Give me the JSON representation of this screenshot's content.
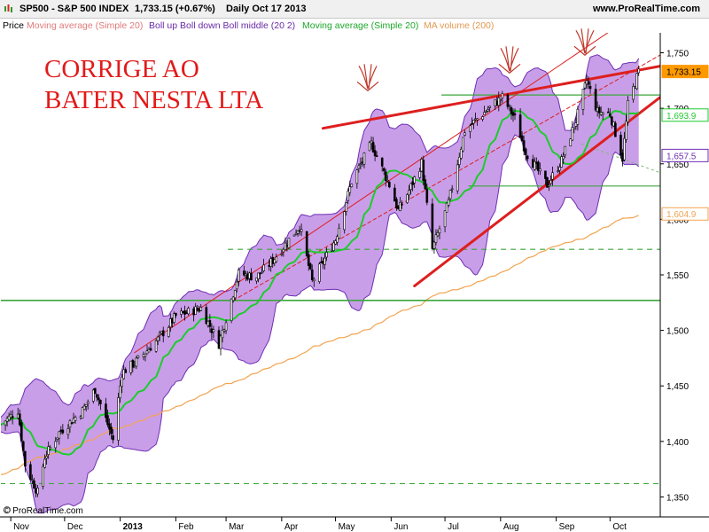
{
  "header": {
    "title": "SP500 - S&P 500 INDEX",
    "price_change": "1,733.15 (+0.67%)",
    "period_date": "Daily  Oct 17 2013",
    "website": "www.ProRealTime.com"
  },
  "legend": {
    "price": "Price",
    "ma20": "Moving average (Simple 20)",
    "boll": "Boll up Boll down Boll middle (20 2)",
    "ma20b": "Moving average (Simple 20)",
    "ma_volume": "MA volume (200)"
  },
  "annotation": {
    "line1": "CORRIGE AO",
    "line2": "BATER NESTA  LTA"
  },
  "copyright": "© ProRealTime.com",
  "colors": {
    "candle": "#000000",
    "bollinger_fill": "#c99ee8",
    "bollinger_edge": "#6e2fb4",
    "ma20": "#1ccc2c",
    "ma200": "#f2a350",
    "trend_red": "#dd1f1f",
    "support_green": "#3aa63a",
    "price_tag": "#ff9900"
  },
  "chart_data": {
    "type": "candlestick",
    "series_name": "SP500",
    "x_axis_labels": [
      "Nov",
      "Dec",
      "2013",
      "Feb",
      "Mar",
      "Apr",
      "May",
      "Jun",
      "Jul",
      "Aug",
      "Sep",
      "Oct"
    ],
    "x_ticks": [
      "2012-11-01",
      "2012-12-01",
      "2013-01-01",
      "2013-02-01",
      "2013-03-01",
      "2013-04-01",
      "2013-05-01",
      "2013-06-01",
      "2013-07-01",
      "2013-08-01",
      "2013-09-01",
      "2013-10-01"
    ],
    "xlim": [
      "2012-10-26",
      "2013-10-29"
    ],
    "ylim": [
      1332,
      1768
    ],
    "y_ticks": [
      1350,
      1400,
      1450,
      1500,
      1550,
      1600,
      1650,
      1700,
      1750
    ],
    "y_tick_labels": [
      "1,350",
      "1,400",
      "1,450",
      "1,500",
      "1,550",
      "1,600",
      "1,650",
      "1,700",
      "1,750"
    ],
    "price_path": [
      [
        "2012-10-26",
        1415
      ],
      [
        "2012-11-05",
        1428
      ],
      [
        "2012-11-09",
        1379
      ],
      [
        "2012-11-16",
        1354
      ],
      [
        "2012-11-20",
        1386
      ],
      [
        "2012-11-28",
        1408
      ],
      [
        "2012-12-11",
        1428
      ],
      [
        "2012-12-18",
        1447
      ],
      [
        "2012-12-28",
        1402
      ],
      [
        "2013-01-02",
        1462
      ],
      [
        "2013-01-10",
        1472
      ],
      [
        "2013-01-22",
        1492
      ],
      [
        "2013-02-01",
        1513
      ],
      [
        "2013-02-15",
        1520
      ],
      [
        "2013-02-25",
        1488
      ],
      [
        "2013-03-08",
        1551
      ],
      [
        "2013-03-18",
        1548
      ],
      [
        "2013-03-27",
        1563
      ],
      [
        "2013-04-11",
        1594
      ],
      [
        "2013-04-18",
        1544
      ],
      [
        "2013-05-01",
        1582
      ],
      [
        "2013-05-10",
        1634
      ],
      [
        "2013-05-21",
        1668
      ],
      [
        "2013-05-31",
        1631
      ],
      [
        "2013-06-05",
        1608
      ],
      [
        "2013-06-11",
        1626
      ],
      [
        "2013-06-18",
        1651
      ],
      [
        "2013-06-24",
        1573
      ],
      [
        "2013-07-03",
        1615
      ],
      [
        "2013-07-12",
        1680
      ],
      [
        "2013-07-22",
        1695
      ],
      [
        "2013-08-02",
        1710
      ],
      [
        "2013-08-09",
        1691
      ],
      [
        "2013-08-15",
        1661
      ],
      [
        "2013-08-27",
        1631
      ],
      [
        "2013-09-04",
        1653
      ],
      [
        "2013-09-12",
        1689
      ],
      [
        "2013-09-18",
        1725
      ],
      [
        "2013-09-24",
        1697
      ],
      [
        "2013-10-01",
        1695
      ],
      [
        "2013-10-08",
        1655
      ],
      [
        "2013-10-11",
        1703
      ],
      [
        "2013-10-17",
        1733
      ]
    ],
    "price_labels": [
      {
        "value": 1733.15,
        "text": "1,733.15",
        "series": "price"
      },
      {
        "value": 1693.9,
        "text": "1,693.9",
        "series": "ma20"
      },
      {
        "value": 1657.5,
        "text": "1,657.5",
        "series": "bollinger"
      },
      {
        "value": 1604.9,
        "text": "1,604.9",
        "series": "ma200"
      }
    ],
    "horizontal_lines": [
      {
        "value": 1712,
        "style": "solid",
        "from": "2013-06-29",
        "to": "2013-10-29"
      },
      {
        "value": 1630,
        "style": "solid",
        "from": "2013-07-14",
        "to": "2013-10-29"
      },
      {
        "value": 1573,
        "style": "dashed",
        "from": "2013-03-02",
        "to": "2013-10-29"
      },
      {
        "value": 1527,
        "style": "solid",
        "from": "2012-10-26",
        "to": "2013-10-29"
      },
      {
        "value": 1362,
        "style": "dashed",
        "from": "2012-10-26",
        "to": "2013-10-29"
      }
    ],
    "trendlines": [
      {
        "points": [
          [
            "2013-04-24",
            1682
          ],
          [
            "2013-10-29",
            1738
          ]
        ],
        "width": 3
      },
      {
        "points": [
          [
            "2013-06-14",
            1540
          ],
          [
            "2013-10-29",
            1710
          ]
        ],
        "width": 3
      },
      {
        "points": [
          [
            "2013-03-05",
            1527
          ],
          [
            "2013-10-29",
            1748
          ]
        ],
        "width": 1,
        "dashed": true
      },
      {
        "points": [
          [
            "2013-01-09",
            1480
          ],
          [
            "2013-10-29",
            1800
          ]
        ],
        "width": 1
      }
    ],
    "arrow_marks": [
      {
        "x": "2013-05-19",
        "y": 1727
      },
      {
        "x": "2013-08-06",
        "y": 1743
      },
      {
        "x": "2013-09-17",
        "y": 1759
      }
    ]
  }
}
